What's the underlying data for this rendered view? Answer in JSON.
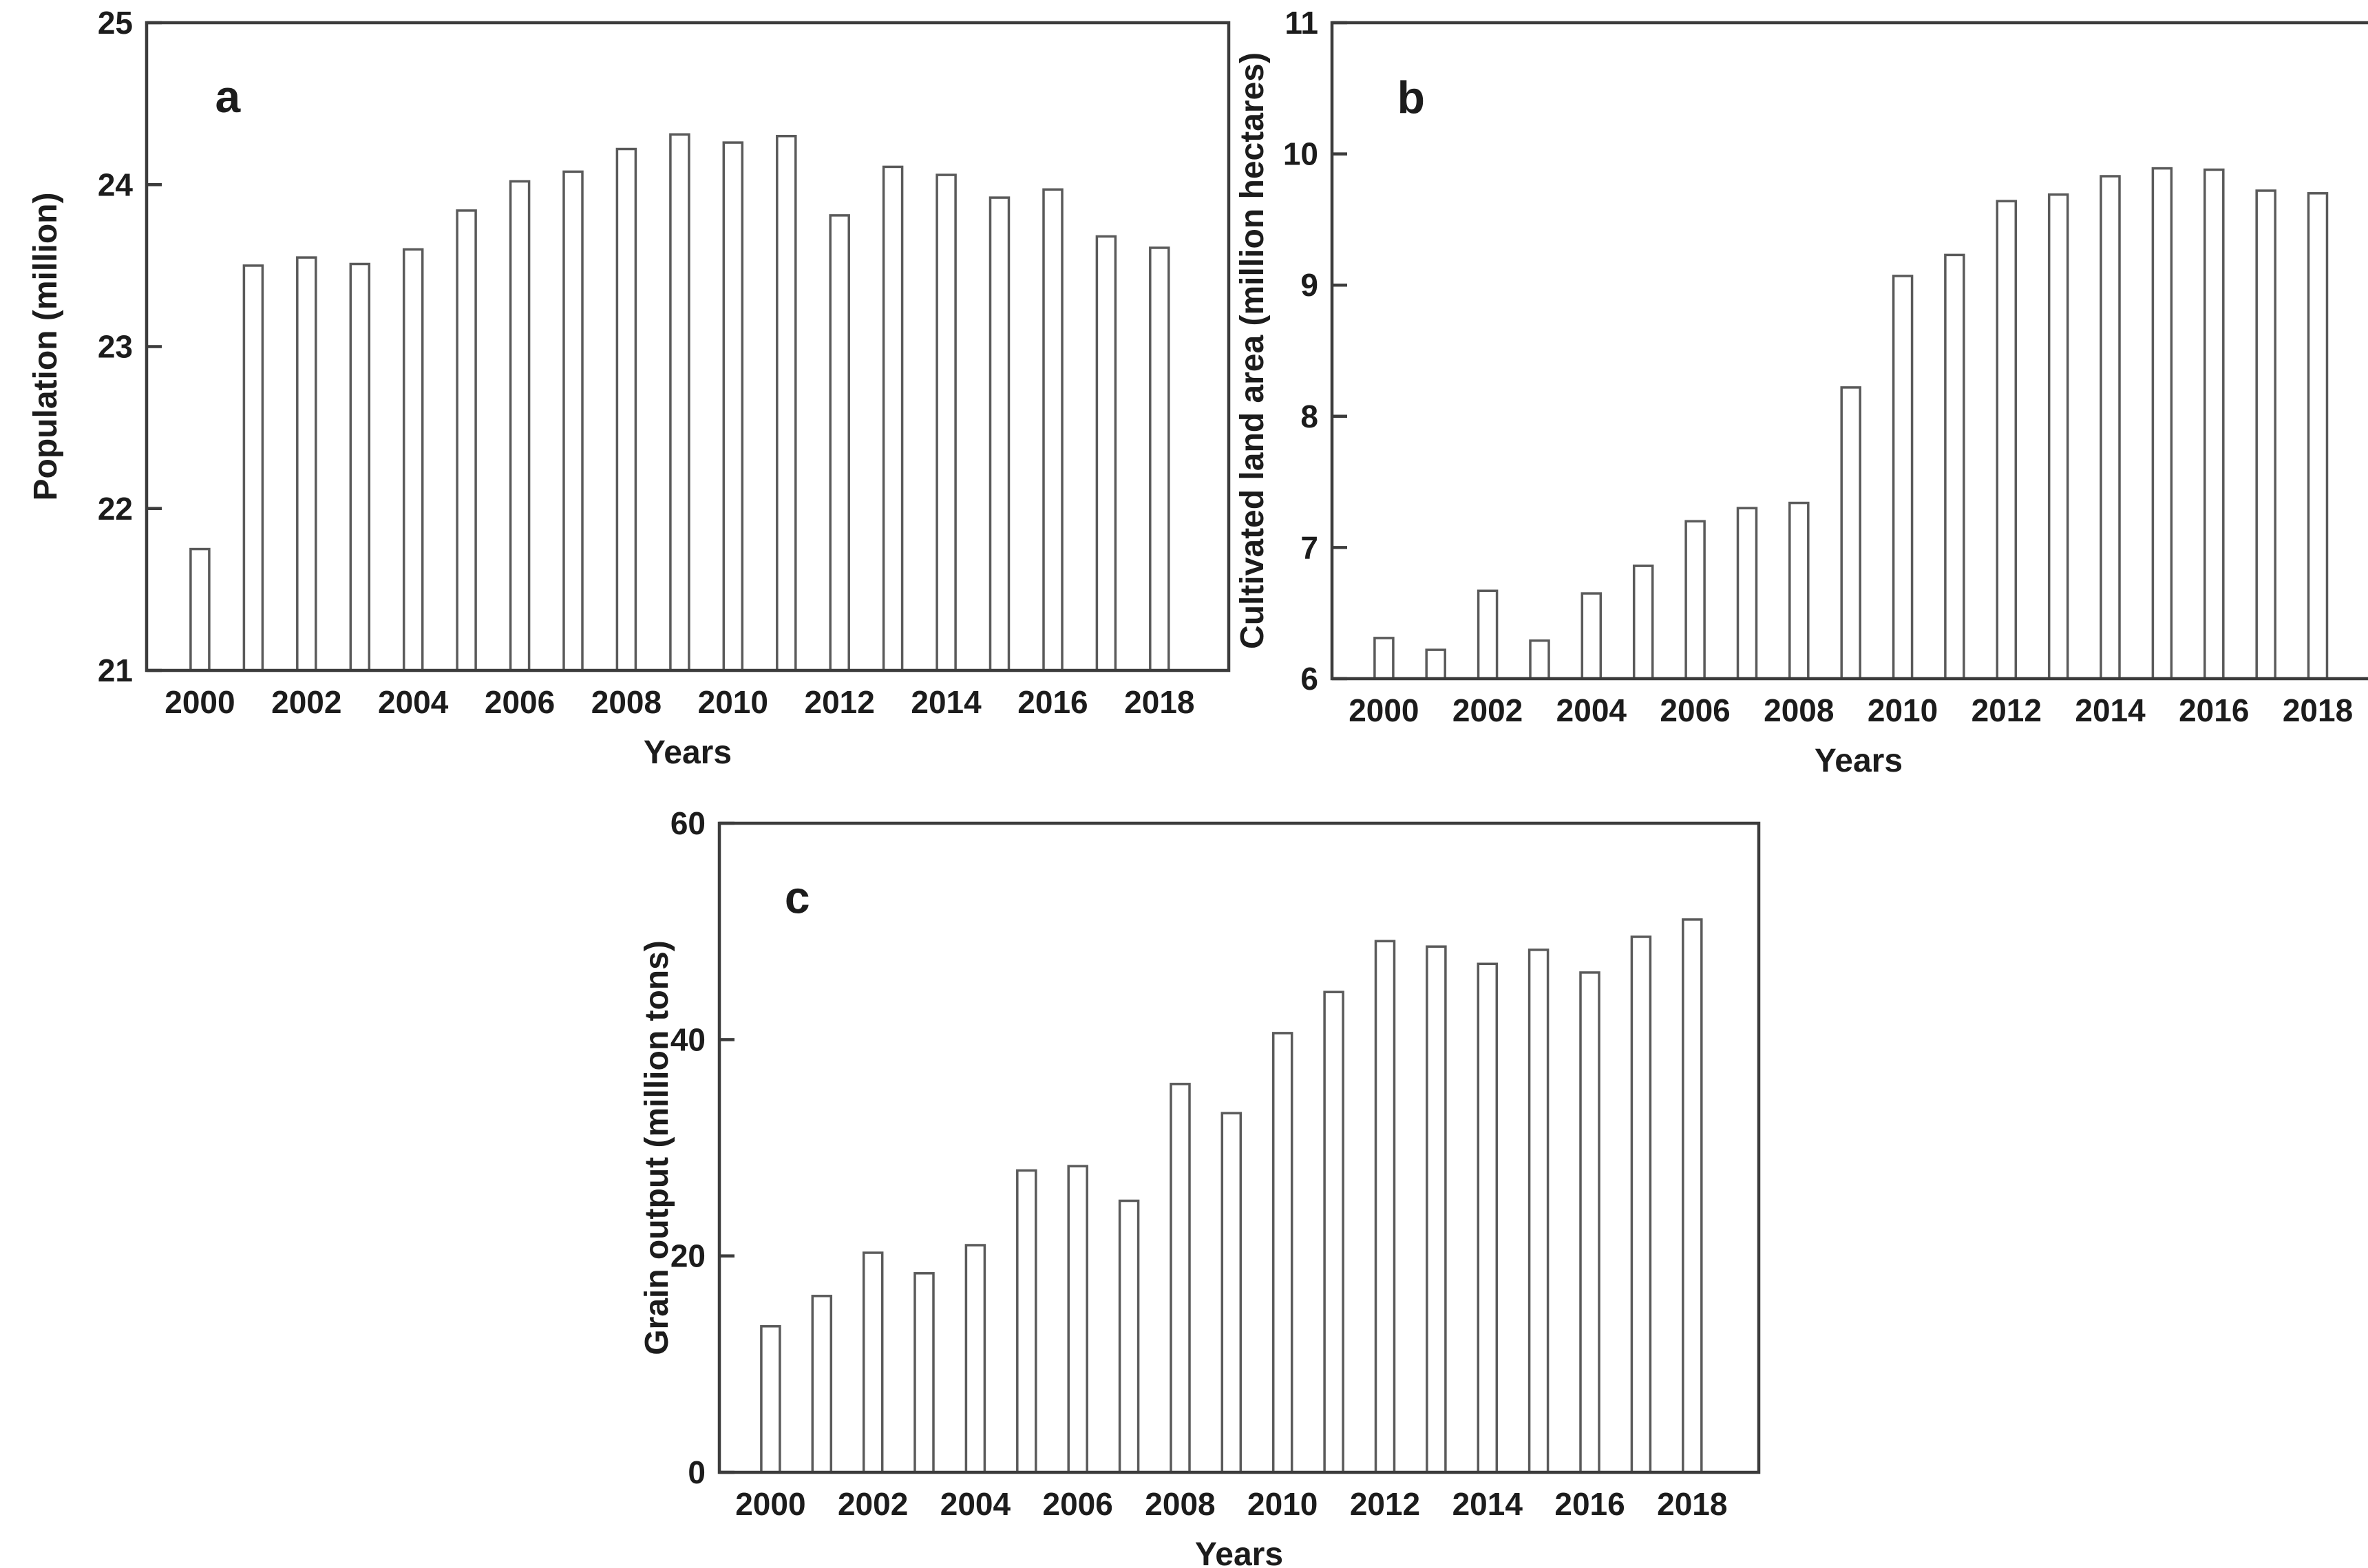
{
  "figure": {
    "background": "#ffffff",
    "style": {
      "bar_fill": "#ffffff",
      "bar_stroke": "#5a5a5a",
      "frame_color": "#3c3c3c",
      "text_color": "#1c1c1c"
    }
  },
  "chart_data": [
    {
      "type": "bar",
      "panel_label": "a",
      "title": "",
      "xlabel": "Years",
      "ylabel": "Population (million)",
      "x": [
        2000,
        2001,
        2002,
        2003,
        2004,
        2005,
        2006,
        2007,
        2008,
        2009,
        2010,
        2011,
        2012,
        2013,
        2014,
        2015,
        2016,
        2017,
        2018
      ],
      "values": [
        21.75,
        23.5,
        23.55,
        23.51,
        23.6,
        23.84,
        24.02,
        24.08,
        24.22,
        24.31,
        24.26,
        24.3,
        23.81,
        24.11,
        24.06,
        23.92,
        23.97,
        23.68,
        23.61
      ],
      "ylim": [
        21,
        25
      ],
      "yticks": [
        21,
        22,
        23,
        24,
        25
      ],
      "ytick_labels": [
        "21",
        "22",
        "23",
        "24",
        "25"
      ],
      "xticks": [
        2000,
        2002,
        2004,
        2006,
        2008,
        2010,
        2012,
        2014,
        2016,
        2018
      ],
      "xtick_labels": [
        "2000",
        "2002",
        "2004",
        "2006",
        "2008",
        "2010",
        "2012",
        "2014",
        "2016",
        "2018"
      ],
      "grid": false,
      "legend": null
    },
    {
      "type": "bar",
      "panel_label": "b",
      "title": "",
      "xlabel": "Years",
      "ylabel": "Cultivated land area (million hectares)",
      "x": [
        2000,
        2001,
        2002,
        2003,
        2004,
        2005,
        2006,
        2007,
        2008,
        2009,
        2010,
        2011,
        2012,
        2013,
        2014,
        2015,
        2016,
        2017,
        2018
      ],
      "values": [
        6.31,
        6.22,
        6.67,
        6.29,
        6.65,
        6.86,
        7.2,
        7.3,
        7.34,
        8.22,
        9.07,
        9.23,
        9.64,
        9.69,
        9.83,
        9.89,
        9.88,
        9.72,
        9.7
      ],
      "ylim": [
        6,
        11
      ],
      "yticks": [
        6,
        7,
        8,
        9,
        10,
        11
      ],
      "ytick_labels": [
        "6",
        "7",
        "8",
        "9",
        "10",
        "11"
      ],
      "xticks": [
        2000,
        2002,
        2004,
        2006,
        2008,
        2010,
        2012,
        2014,
        2016,
        2018
      ],
      "xtick_labels": [
        "2000",
        "2002",
        "2004",
        "2006",
        "2008",
        "2010",
        "2012",
        "2014",
        "2016",
        "2018"
      ],
      "grid": false,
      "legend": null
    },
    {
      "type": "bar",
      "panel_label": "c",
      "title": "",
      "xlabel": "Years",
      "ylabel": "Grain output (million tons)",
      "x": [
        2000,
        2001,
        2002,
        2003,
        2004,
        2005,
        2006,
        2007,
        2008,
        2009,
        2010,
        2011,
        2012,
        2013,
        2014,
        2015,
        2016,
        2017,
        2018
      ],
      "values": [
        13.5,
        16.3,
        20.3,
        18.4,
        21.0,
        27.9,
        28.3,
        25.1,
        35.9,
        33.2,
        40.6,
        44.4,
        49.1,
        48.6,
        47.0,
        48.3,
        46.2,
        49.5,
        51.1
      ],
      "ylim": [
        0,
        60
      ],
      "yticks": [
        0,
        20,
        40,
        60
      ],
      "ytick_labels": [
        "0",
        "20",
        "40",
        "60"
      ],
      "xticks": [
        2000,
        2002,
        2004,
        2006,
        2008,
        2010,
        2012,
        2014,
        2016,
        2018
      ],
      "xtick_labels": [
        "2000",
        "2002",
        "2004",
        "2006",
        "2008",
        "2010",
        "2012",
        "2014",
        "2016",
        "2018"
      ],
      "grid": false,
      "legend": null
    }
  ]
}
